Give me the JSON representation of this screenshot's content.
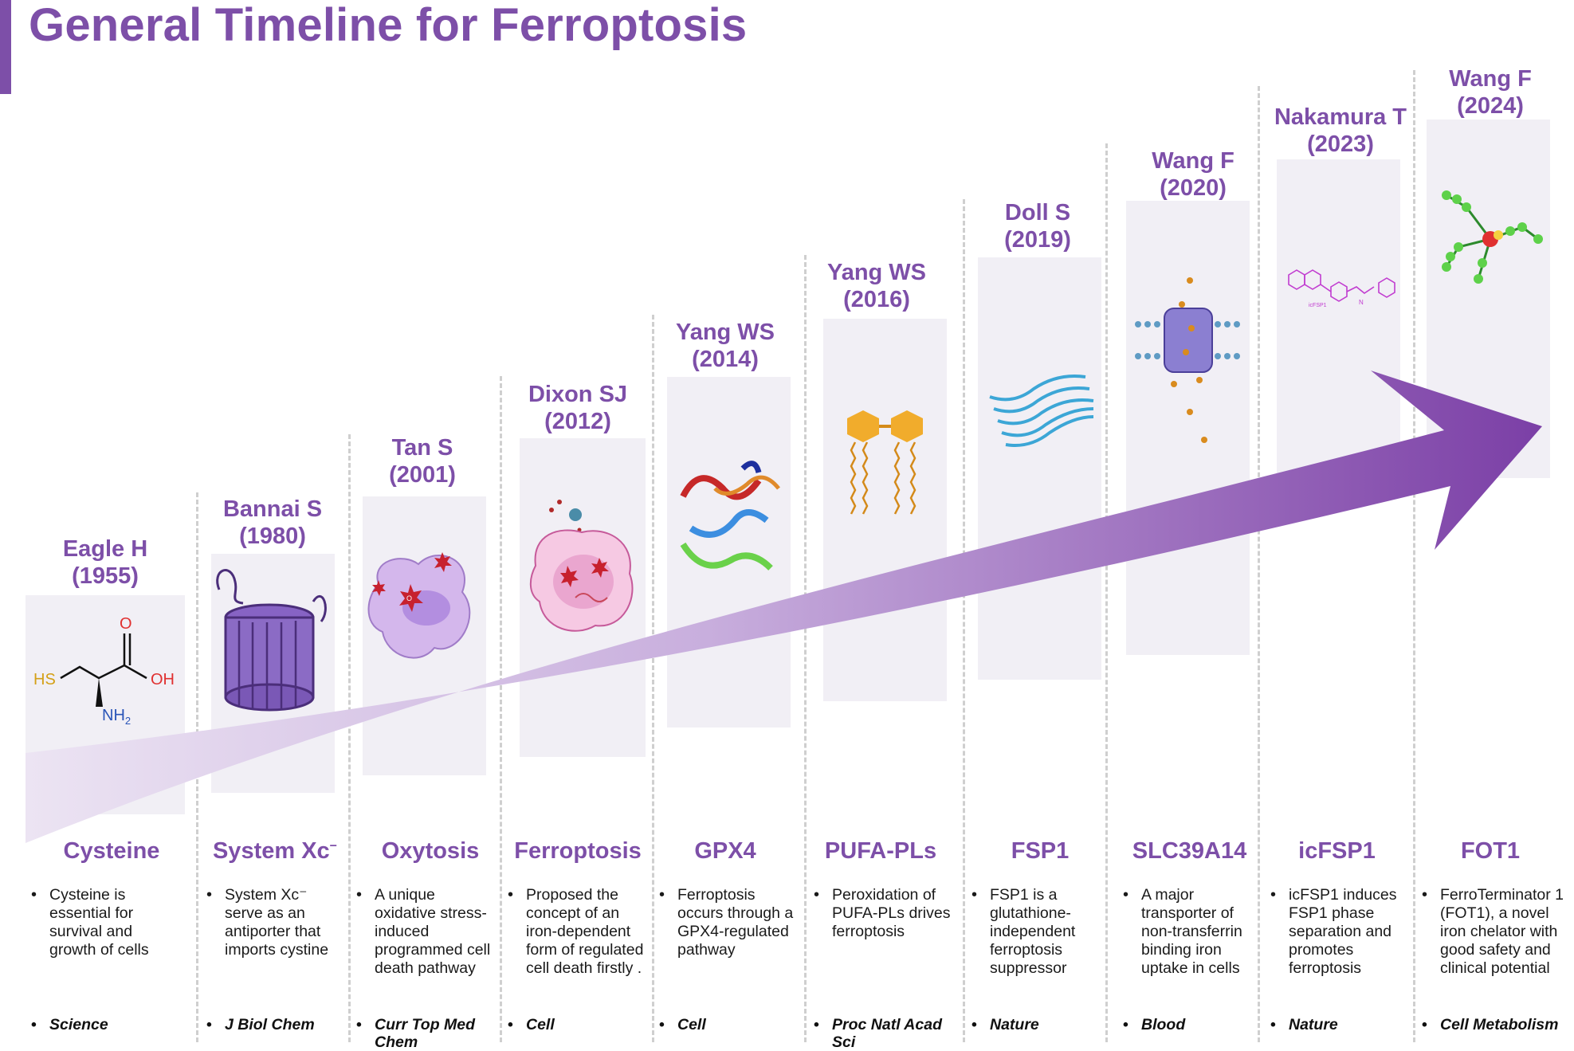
{
  "title": "General Timeline for Ferroptosis",
  "colors": {
    "accent": "#7d4fa8",
    "panel": "#f1eff5",
    "divider": "#cfcfcf",
    "arrow_start": "#ece4f3",
    "arrow_end": "#7b3fa6"
  },
  "molecule_labels": {
    "hs": "HS",
    "o": "O",
    "oh": "OH",
    "nh": "NH",
    "nh_sub": "2",
    "o2": "O",
    "o2_sub": "2",
    "icfsp1_tag": "icFSP1",
    "n_atom": "N"
  },
  "events": [
    {
      "author": "Eagle H",
      "year": "(1955)",
      "topic": "Cysteine",
      "topic_sup": "",
      "description": "Cysteine is essential for survival and growth of cells",
      "journal": "Science",
      "icon": "cysteine-structure-icon"
    },
    {
      "author": "Bannai S",
      "year": "(1980)",
      "topic": "System Xc",
      "topic_sup": "−",
      "description": "System Xc⁻ serve as an antiporter that imports cystine",
      "journal": "J Biol Chem",
      "icon": "transporter-barrel-icon"
    },
    {
      "author": "Tan S",
      "year": "(2001)",
      "topic": "Oxytosis",
      "topic_sup": "",
      "description": "A unique oxidative stress-induced programmed cell death pathway",
      "journal": "Curr Top Med Chem",
      "icon": "oxidative-cell-icon"
    },
    {
      "author": "Dixon SJ",
      "year": "(2012)",
      "topic": "Ferroptosis",
      "topic_sup": "",
      "description": "Proposed the concept of an iron-dependent form of regulated cell death firstly .",
      "journal": "Cell",
      "icon": "ferroptotic-cell-icon"
    },
    {
      "author": "Yang WS",
      "year": "(2014)",
      "topic": "GPX4",
      "topic_sup": "",
      "description": "Ferroptosis occurs through a GPX4-regulated pathway",
      "journal": "Cell",
      "icon": "gpx4-protein-icon"
    },
    {
      "author": "Yang WS",
      "year": "(2016)",
      "topic": "PUFA-PLs",
      "topic_sup": "",
      "description": "Peroxidation of PUFA-PLs drives ferroptosis",
      "journal": "Proc Natl Acad Sci",
      "icon": "phospholipid-icon"
    },
    {
      "author": "Doll S",
      "year": "(2019)",
      "topic": "FSP1",
      "topic_sup": "",
      "description": "FSP1 is a glutathione-independent ferroptosis suppressor",
      "journal": "Nature",
      "icon": "fsp1-helix-icon"
    },
    {
      "author": "Wang F",
      "year": "(2020)",
      "topic": "SLC39A14",
      "topic_sup": "",
      "description": "A major transporter of non-transferrin binding iron uptake in cells",
      "journal": "Blood",
      "icon": "membrane-channel-icon"
    },
    {
      "author": "Nakamura T",
      "year": "(2023)",
      "topic": "icFSP1",
      "topic_sup": "",
      "description": "icFSP1 induces FSP1 phase separation and  promotes ferroptosis",
      "journal": "Nature",
      "icon": "icfsp1-structure-icon"
    },
    {
      "author": "Wang F",
      "year": "(2024)",
      "topic": "FOT1",
      "topic_sup": "",
      "description": "FerroTerminator 1 (FOT1), a novel iron chelator with good safety and clinical potential",
      "journal": "Cell Metabolism",
      "icon": "fot1-molecule-icon"
    }
  ]
}
